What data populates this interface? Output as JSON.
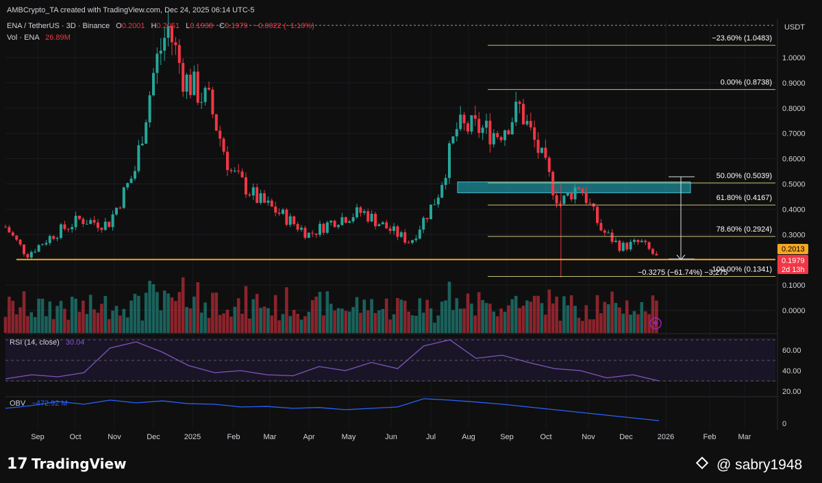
{
  "header": {
    "attribution": "AMBCrypto_TA created with TradingView.com, Dec 24, 2025 06:14 UTC-5",
    "symbol_line": "ENA / TetherUS · 3D · Binance",
    "ohlc": {
      "o_label": "O",
      "o_value": "0.2001",
      "h_label": "H",
      "h_value": "0.2051",
      "l_label": "L",
      "l_value": "0.1938",
      "c_label": "C",
      "c_value": "0.1979",
      "change": "−0.0022 (−1.10%)"
    },
    "vol_label": "Vol · ENA",
    "vol_value": "26.89M"
  },
  "currency": "USDT",
  "price_tags": {
    "level": "0.2013",
    "last": "0.1979",
    "countdown": "2d 13h"
  },
  "measure_label": "−0.3275 (−61.74%) −3,275",
  "rsi": {
    "label": "RSI (14, close)",
    "value": "30.04"
  },
  "obv": {
    "label": "OBV",
    "value": "−472.92 M"
  },
  "footer": {
    "brand": "TradingView",
    "watermark": "@ sabry1948"
  },
  "colors": {
    "up": "#26a69a",
    "down": "#f23645",
    "fib": "#c9c17a",
    "support": "#f5a623",
    "zone": "#1e8c99",
    "rsi": "#7e57c2",
    "obv": "#2962ff"
  },
  "chart_data": [
    {
      "type": "candlestick",
      "title": "ENA / TetherUS · 3D · Binance",
      "ylabel": "USDT",
      "ylim": [
        -0.06,
        1.16
      ],
      "y_ticks": [
        "1.0000",
        "0.9000",
        "0.8000",
        "0.7000",
        "0.6000",
        "0.5000",
        "0.4000",
        "0.3000",
        "0.1000",
        "0.0000"
      ],
      "x_ticks": [
        "Sep",
        "Oct",
        "Nov",
        "Dec",
        "2025",
        "Feb",
        "Mar",
        "Apr",
        "May",
        "Jun",
        "Jul",
        "Aug",
        "Sep",
        "Oct",
        "Nov",
        "Dec",
        "2026",
        "Feb",
        "Mar"
      ],
      "series": [
        {
          "name": "price",
          "x": [
            "2024-08-20",
            "2024-09-05",
            "2024-09-25",
            "2024-10-15",
            "2024-11-05",
            "2024-11-25",
            "2024-12-10",
            "2024-12-20",
            "2025-01-01",
            "2025-01-20",
            "2025-02-05",
            "2025-02-25",
            "2025-03-15",
            "2025-04-05",
            "2025-04-25",
            "2025-05-15",
            "2025-06-01",
            "2025-06-20",
            "2025-07-10",
            "2025-07-25",
            "2025-08-10",
            "2025-08-25",
            "2025-09-10",
            "2025-09-25",
            "2025-10-10",
            "2025-10-25",
            "2025-11-10",
            "2025-11-25",
            "2025-12-10",
            "2025-12-24"
          ],
          "close": [
            0.33,
            0.22,
            0.3,
            0.36,
            0.34,
            0.55,
            0.96,
            1.12,
            0.92,
            0.82,
            0.55,
            0.44,
            0.38,
            0.3,
            0.36,
            0.39,
            0.33,
            0.27,
            0.45,
            0.72,
            0.72,
            0.7,
            0.8,
            0.62,
            0.42,
            0.5,
            0.32,
            0.25,
            0.27,
            0.1979
          ]
        }
      ],
      "fib_levels": [
        {
          "label": "−23.60% (1.0483)",
          "value": 1.0483
        },
        {
          "label": "0.00% (0.8738)",
          "value": 0.8738
        },
        {
          "label": "50.00% (0.5039)",
          "value": 0.5039
        },
        {
          "label": "61.80% (0.4167)",
          "value": 0.4167
        },
        {
          "label": "78.60% (0.2924)",
          "value": 0.2924
        },
        {
          "label": "100.00% (0.1341)",
          "value": 0.1341
        }
      ],
      "support_level": 0.2013,
      "resistance_zone": [
        0.465,
        0.508
      ]
    },
    {
      "type": "line",
      "title": "RSI (14, close)",
      "ylim": [
        20,
        70
      ],
      "y_ticks": [
        "60.00",
        "40.00",
        "20.00"
      ],
      "values": [
        32,
        36,
        34,
        38,
        62,
        68,
        58,
        45,
        38,
        40,
        36,
        35,
        44,
        40,
        48,
        42,
        64,
        70,
        52,
        55,
        48,
        42,
        40,
        33,
        36,
        30
      ]
    },
    {
      "type": "line",
      "title": "OBV",
      "y_ticks": [
        "0"
      ],
      "values": [
        0.55,
        0.65,
        0.8,
        0.7,
        0.85,
        0.75,
        0.82,
        0.72,
        0.7,
        0.6,
        0.62,
        0.55,
        0.58,
        0.5,
        0.55,
        0.6,
        0.9,
        0.85,
        0.78,
        0.7,
        0.6,
        0.5,
        0.4,
        0.3,
        0.2,
        0.1
      ]
    }
  ]
}
